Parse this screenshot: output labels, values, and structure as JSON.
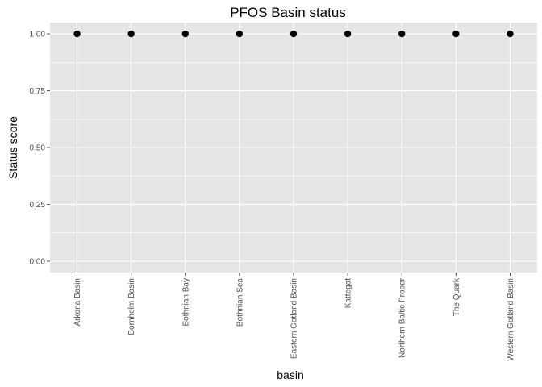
{
  "chart_data": {
    "type": "scatter",
    "title": "PFOS Basin status",
    "xlabel": "basin",
    "ylabel": "Status score",
    "categories": [
      "Arkona Basin",
      "Bornholm Basin",
      "Bothnian Bay",
      "Bothnian Sea",
      "Eastern Gotland Basin",
      "Kattegat",
      "Northern Baltic Proper",
      "The Quark",
      "Western Gotland Basin"
    ],
    "values": [
      1.0,
      1.0,
      1.0,
      1.0,
      1.0,
      1.0,
      1.0,
      1.0,
      1.0
    ],
    "ylim": [
      -0.05,
      1.05
    ],
    "yticks": [
      0.0,
      0.25,
      0.5,
      0.75,
      1.0
    ],
    "yticklabels": [
      "0.00",
      "0.25",
      "0.50",
      "0.75",
      "1.00"
    ],
    "grid": true,
    "legend": "none",
    "colors": {
      "panel": "#e5e5e5",
      "grid": "#ffffff",
      "point": "#000000",
      "tick": "#4d4d4d"
    }
  }
}
